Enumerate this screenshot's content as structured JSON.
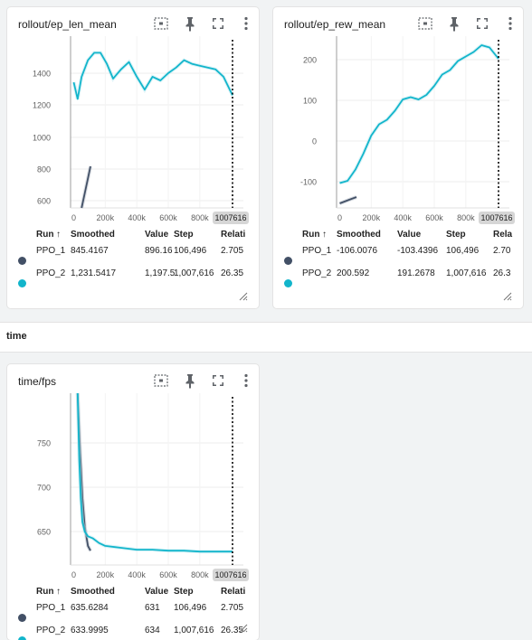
{
  "section": {
    "title": "time"
  },
  "colors": {
    "ppo1": "#425066",
    "ppo2": "#12b5cb",
    "ppo2_light": "#b6e7ef"
  },
  "table_headers": {
    "run": "Run",
    "smoothed": "Smoothed",
    "value": "Value",
    "step": "Step",
    "relative": "Relati",
    "relative_short": "Rela"
  },
  "cards": [
    {
      "title": "rollout/ep_len_mean",
      "step_badge": "1007616",
      "rows": [
        {
          "run": "PPO_1",
          "smoothed": "845.4167",
          "value": "896.16",
          "step": "106,496",
          "relative": "2.705"
        },
        {
          "run": "PPO_2",
          "smoothed": "1,231.5417",
          "value": "1,197.5",
          "step": "1,007,616",
          "relative": "26.35"
        }
      ],
      "chart_data": {
        "type": "line",
        "title": "rollout/ep_len_mean",
        "x_ticks": [
          "0",
          "200k",
          "400k",
          "600k",
          "800k"
        ],
        "y_ticks": [
          "1400",
          "1200",
          "1000",
          "800",
          "600"
        ],
        "xlim": [
          -20000,
          1007616
        ],
        "ylim": [
          620,
          1550
        ],
        "series": [
          {
            "name": "PPO_1",
            "x": [
              50000,
              70000,
              90000,
              106496
            ],
            "y": [
              620,
              700,
              780,
              845
            ]
          },
          {
            "name": "PPO_2",
            "x": [
              0,
              25000,
              50000,
              90000,
              130000,
              170000,
              210000,
              250000,
              300000,
              350000,
              400000,
              450000,
              500000,
              550000,
              600000,
              650000,
              700000,
              750000,
              800000,
              850000,
              900000,
              950000,
              1007616
            ],
            "y": [
              1300,
              1210,
              1330,
              1420,
              1460,
              1460,
              1400,
              1320,
              1370,
              1410,
              1330,
              1260,
              1330,
              1310,
              1350,
              1380,
              1420,
              1400,
              1390,
              1380,
              1370,
              1330,
              1230
            ]
          }
        ]
      }
    },
    {
      "title": "rollout/ep_rew_mean",
      "step_badge": "1007616",
      "rows": [
        {
          "run": "PPO_1",
          "smoothed": "-106.0076",
          "value": "-103.4396",
          "step": "106,496",
          "relative": "2.70"
        },
        {
          "run": "PPO_2",
          "smoothed": "200.592",
          "value": "191.2678",
          "step": "1,007,616",
          "relative": "26.3"
        }
      ],
      "chart_data": {
        "type": "line",
        "title": "rollout/ep_rew_mean",
        "x_ticks": [
          "0",
          "200k",
          "400k",
          "600k",
          "800k"
        ],
        "y_ticks": [
          "200",
          "100",
          "0",
          "-100"
        ],
        "xlim": [
          -20000,
          1007616
        ],
        "ylim": [
          -130,
          250
        ],
        "series": [
          {
            "name": "PPO_1",
            "x": [
              0,
              30000,
              60000,
              106496
            ],
            "y": [
              -120,
              -116,
              -112,
              -106
            ]
          },
          {
            "name": "PPO_2",
            "x": [
              0,
              50000,
              100000,
              150000,
              200000,
              250000,
              300000,
              350000,
              400000,
              450000,
              500000,
              550000,
              600000,
              650000,
              700000,
              750000,
              800000,
              850000,
              900000,
              950000,
              1007616
            ],
            "y": [
              -75,
              -70,
              -45,
              -10,
              30,
              55,
              65,
              85,
              110,
              115,
              110,
              120,
              140,
              165,
              175,
              195,
              205,
              215,
              230,
              225,
              200
            ]
          }
        ]
      }
    },
    {
      "title": "time/fps",
      "step_badge": "1007616",
      "rows": [
        {
          "run": "PPO_1",
          "smoothed": "635.6284",
          "value": "631",
          "step": "106,496",
          "relative": "2.705"
        },
        {
          "run": "PPO_2",
          "smoothed": "633.9995",
          "value": "634",
          "step": "1,007,616",
          "relative": "26.35"
        }
      ],
      "chart_data": {
        "type": "line",
        "title": "time/fps",
        "x_ticks": [
          "0",
          "200k",
          "400k",
          "600k",
          "800k"
        ],
        "y_ticks": [
          "750",
          "700",
          "650"
        ],
        "xlim": [
          -20000,
          1007616
        ],
        "ylim": [
          620,
          800
        ],
        "series": [
          {
            "name": "PPO_1",
            "x": [
              25000,
              40000,
              55000,
              70000,
              90000,
              106496
            ],
            "y": [
              800,
              740,
              690,
              660,
              640,
              635
            ]
          },
          {
            "name": "PPO_2",
            "x": [
              25000,
              35000,
              45000,
              55000,
              70000,
              90000,
              120000,
              160000,
              200000,
              300000,
              400000,
              500000,
              600000,
              700000,
              800000,
              900000,
              1007616
            ],
            "y": [
              800,
              730,
              690,
              665,
              655,
              650,
              648,
              643,
              640,
              638,
              636,
              636,
              635,
              635,
              634,
              634,
              634
            ]
          }
        ]
      }
    }
  ]
}
